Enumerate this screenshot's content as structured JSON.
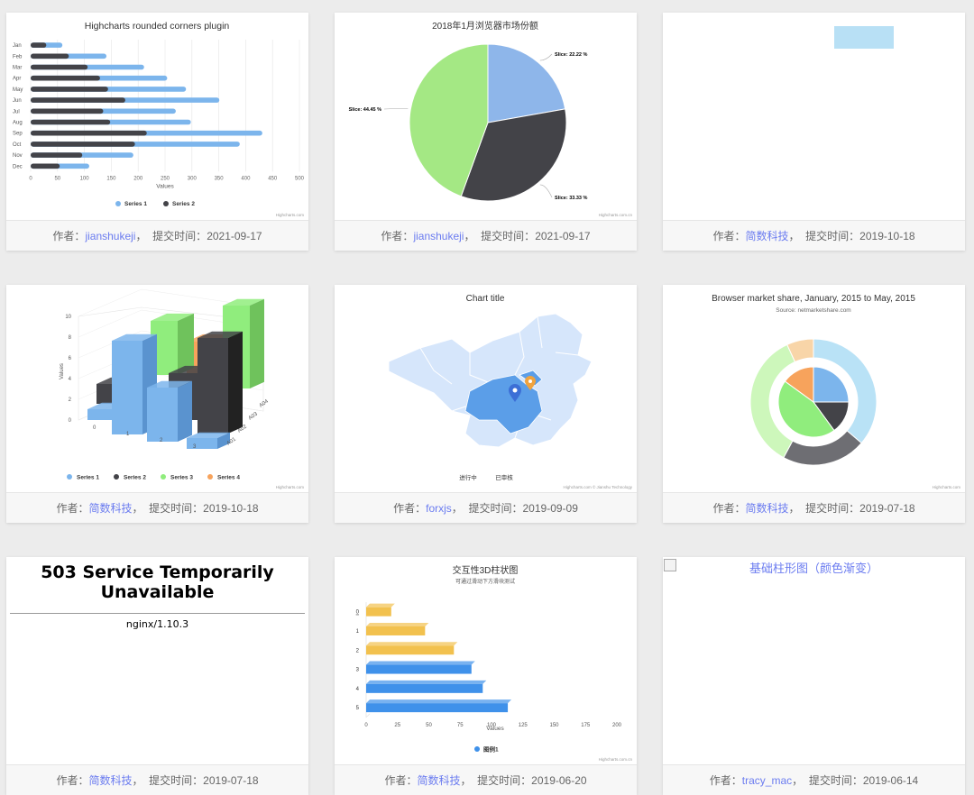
{
  "meta": {
    "author_label": "作者：",
    "sep": "，",
    "time_label": "提交时间："
  },
  "cards": [
    {
      "author": "jianshukeji",
      "date": "2021-09-17"
    },
    {
      "author": "jianshukeji",
      "date": "2021-09-17"
    },
    {
      "author": "简数科技",
      "date": "2019-10-18"
    },
    {
      "author": "简数科技",
      "date": "2019-10-18"
    },
    {
      "author": "forxjs",
      "date": "2019-09-09"
    },
    {
      "author": "简数科技",
      "date": "2019-07-18"
    },
    {
      "author": "简数科技",
      "date": "2019-07-18"
    },
    {
      "author": "简数科技",
      "date": "2019-06-20"
    },
    {
      "author": "tracy_mac",
      "date": "2019-06-14"
    }
  ],
  "credits": {
    "hc": "Highcharts.com",
    "hccn": "Highcharts.com.cn",
    "map": "Highcharts.com © Jianshu Technology"
  },
  "chart_data": [
    {
      "type": "bar",
      "title": "Highcharts rounded corners plugin",
      "xlabel": "Values",
      "categories": [
        "Jan",
        "Feb",
        "Mar",
        "Apr",
        "May",
        "Jun",
        "Jul",
        "Aug",
        "Sep",
        "Oct",
        "Nov",
        "Dec"
      ],
      "series": [
        {
          "name": "Series 1",
          "color": "#7cb5ec",
          "values": [
            30,
            70,
            105,
            125,
            145,
            175,
            135,
            150,
            215,
            195,
            95,
            55
          ]
        },
        {
          "name": "Series 2",
          "color": "#434348",
          "values": [
            29,
            71,
            106,
            129,
            144,
            176,
            135,
            148,
            216,
            194,
            96,
            54
          ]
        }
      ],
      "xlim": [
        0,
        500
      ],
      "xticks": [
        0,
        50,
        100,
        150,
        200,
        250,
        300,
        350,
        400,
        450,
        500
      ]
    },
    {
      "type": "pie",
      "title": "2018年1月浏览器市场份额",
      "slices": [
        {
          "label": "Slice: 22.22 %",
          "value": 22.22,
          "color": "#8eb6ea"
        },
        {
          "label": "Slice: 33.33 %",
          "value": 33.33,
          "color": "#434348"
        },
        {
          "label": "Slice: 44.45 %",
          "value": 44.45,
          "color": "#a4e884"
        }
      ]
    },
    {
      "type": "bar",
      "title": "",
      "note": "3D column chart",
      "ylabel": "Values",
      "yticks": [
        0,
        2,
        4,
        6,
        8,
        10
      ],
      "categories": [
        "0",
        "1",
        "2",
        "3"
      ],
      "depth_labels": [
        "A01",
        "A02",
        "A03",
        "A04"
      ],
      "series": [
        {
          "name": "Series 1",
          "color": "#7cb5ec"
        },
        {
          "name": "Series 2",
          "color": "#434348"
        },
        {
          "name": "Series 3",
          "color": "#90ed7d"
        },
        {
          "name": "Series 4",
          "color": "#f7a35c"
        }
      ]
    },
    {
      "type": "map",
      "title": "Chart title",
      "legend": [
        "进行中",
        "已审核"
      ]
    },
    {
      "type": "pie",
      "title": "Browser market share, January, 2015 to May, 2015",
      "subtitle": "Source: netmarketshare.com",
      "inner": [
        {
          "value": 25,
          "color": "#7cb5ec"
        },
        {
          "value": 15,
          "color": "#434348"
        },
        {
          "value": 45,
          "color": "#90ed7d"
        },
        {
          "value": 15,
          "color": "#f7a35c"
        }
      ],
      "outer": [
        {
          "value": 37,
          "color": "#b9e2f6"
        },
        {
          "value": 22,
          "color": "#6e6e73"
        },
        {
          "value": 36,
          "color": "#cdf7bb"
        },
        {
          "value": 7,
          "color": "#f8d5a8"
        }
      ]
    },
    {
      "type": "bar",
      "title": "交互性3D柱状图",
      "subtitle": "可通过滑动下方滑块测试",
      "xlabel": "Values",
      "categories": [
        "0",
        "1",
        "2",
        "3",
        "4",
        "5"
      ],
      "series": [
        {
          "name": "图例1",
          "color": "#3f91ea"
        }
      ],
      "values": [
        20,
        47,
        70,
        84,
        93,
        113
      ],
      "colors": [
        "#f2c14e",
        "#f2c14e",
        "#f2c14e",
        "#3f91ea",
        "#3f91ea",
        "#3f91ea"
      ],
      "xlim": [
        0,
        200
      ],
      "xticks": [
        0,
        25,
        50,
        75,
        100,
        125,
        150,
        175,
        200
      ]
    }
  ],
  "error": {
    "title": "503 Service Temporarily Unavailable",
    "server": "nginx/1.10.3"
  },
  "broken_image": {
    "alt": "基础柱形图（颜色渐变）"
  }
}
